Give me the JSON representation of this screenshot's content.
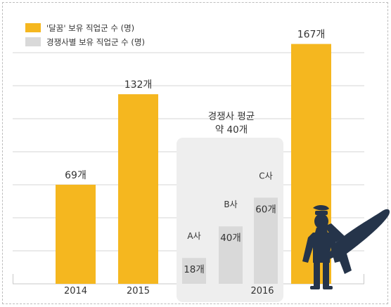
{
  "colors": {
    "highlight": "#f5b71f",
    "competitor": "#d9d9d9",
    "panel": "#eeeeee",
    "gridline": "#d6d6d6",
    "pilot_icon": "#25344a"
  },
  "icon": "pilot-with-airplane-icon",
  "chart_data": {
    "type": "bar",
    "title": "",
    "xlabel": "",
    "ylabel": "",
    "ylim": [
      0,
      180
    ],
    "grid": true,
    "legend_position": "top-left",
    "legend": [
      {
        "label": "'달꿈' 보유 직업군 수 (명)",
        "color": "#f5b71f"
      },
      {
        "label": "경쟁사별 보유 직업군 수 (명)",
        "color": "#d9d9d9"
      }
    ],
    "categories": [
      "2014",
      "2015",
      "2016"
    ],
    "series": [
      {
        "name": "'달꿈' 보유 직업군 수 (명)",
        "values": [
          {
            "category": "2014",
            "value": 69,
            "label": "69개"
          },
          {
            "category": "2015",
            "value": 132,
            "label": "132개"
          },
          {
            "category": "2016",
            "value": 167,
            "label": "167개"
          }
        ]
      },
      {
        "name": "경쟁사별 보유 직업군 수 (명)",
        "values": [
          {
            "category": "2016",
            "company": "A사",
            "value": 18,
            "label": "18개"
          },
          {
            "category": "2016",
            "company": "B사",
            "value": 40,
            "label": "40개"
          },
          {
            "category": "2016",
            "company": "C사",
            "value": 60,
            "label": "60개"
          }
        ]
      }
    ],
    "annotation": {
      "line1": "경쟁사 평균",
      "line2": "약 40개"
    }
  }
}
